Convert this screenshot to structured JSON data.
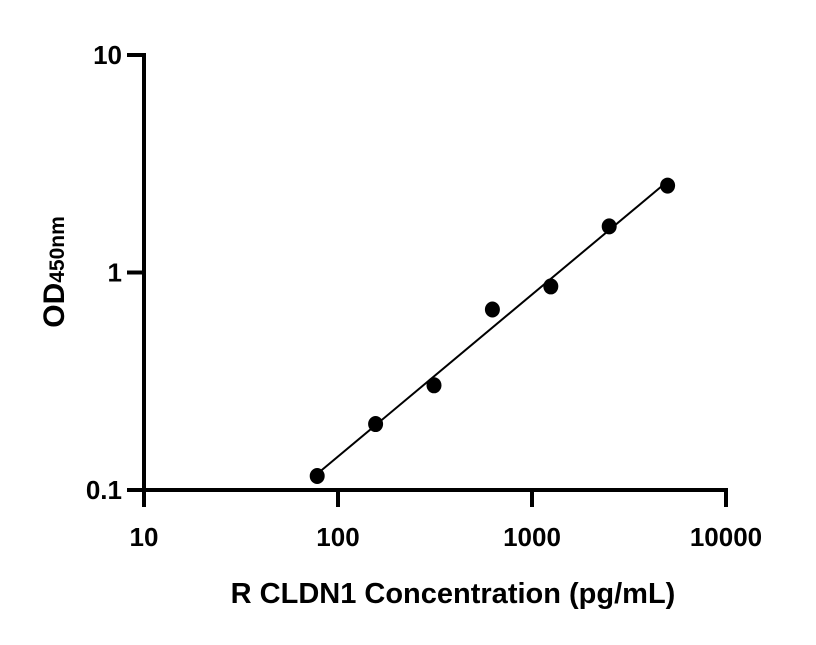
{
  "chart_data": {
    "type": "scatter",
    "title": "",
    "xlabel": "R CLDN1 Concentration (pg/mL)",
    "ylabel_main": "OD",
    "ylabel_sub": "450nm",
    "x_scale": "log",
    "y_scale": "log",
    "xlim": [
      10,
      10000
    ],
    "ylim": [
      0.1,
      10
    ],
    "x_ticks": [
      "10",
      "100",
      "1000",
      "10000"
    ],
    "y_ticks": [
      "0.1",
      "1",
      "10"
    ],
    "grid": false,
    "legend": "none",
    "fit_line": "linear fit on log-log axes",
    "series": [
      {
        "x": [
          78.125,
          156.25,
          312.5,
          625,
          1250,
          2500,
          5000
        ],
        "y": [
          0.116,
          0.201,
          0.303,
          0.676,
          0.863,
          1.63,
          2.51
        ],
        "color": "#000000"
      }
    ]
  }
}
